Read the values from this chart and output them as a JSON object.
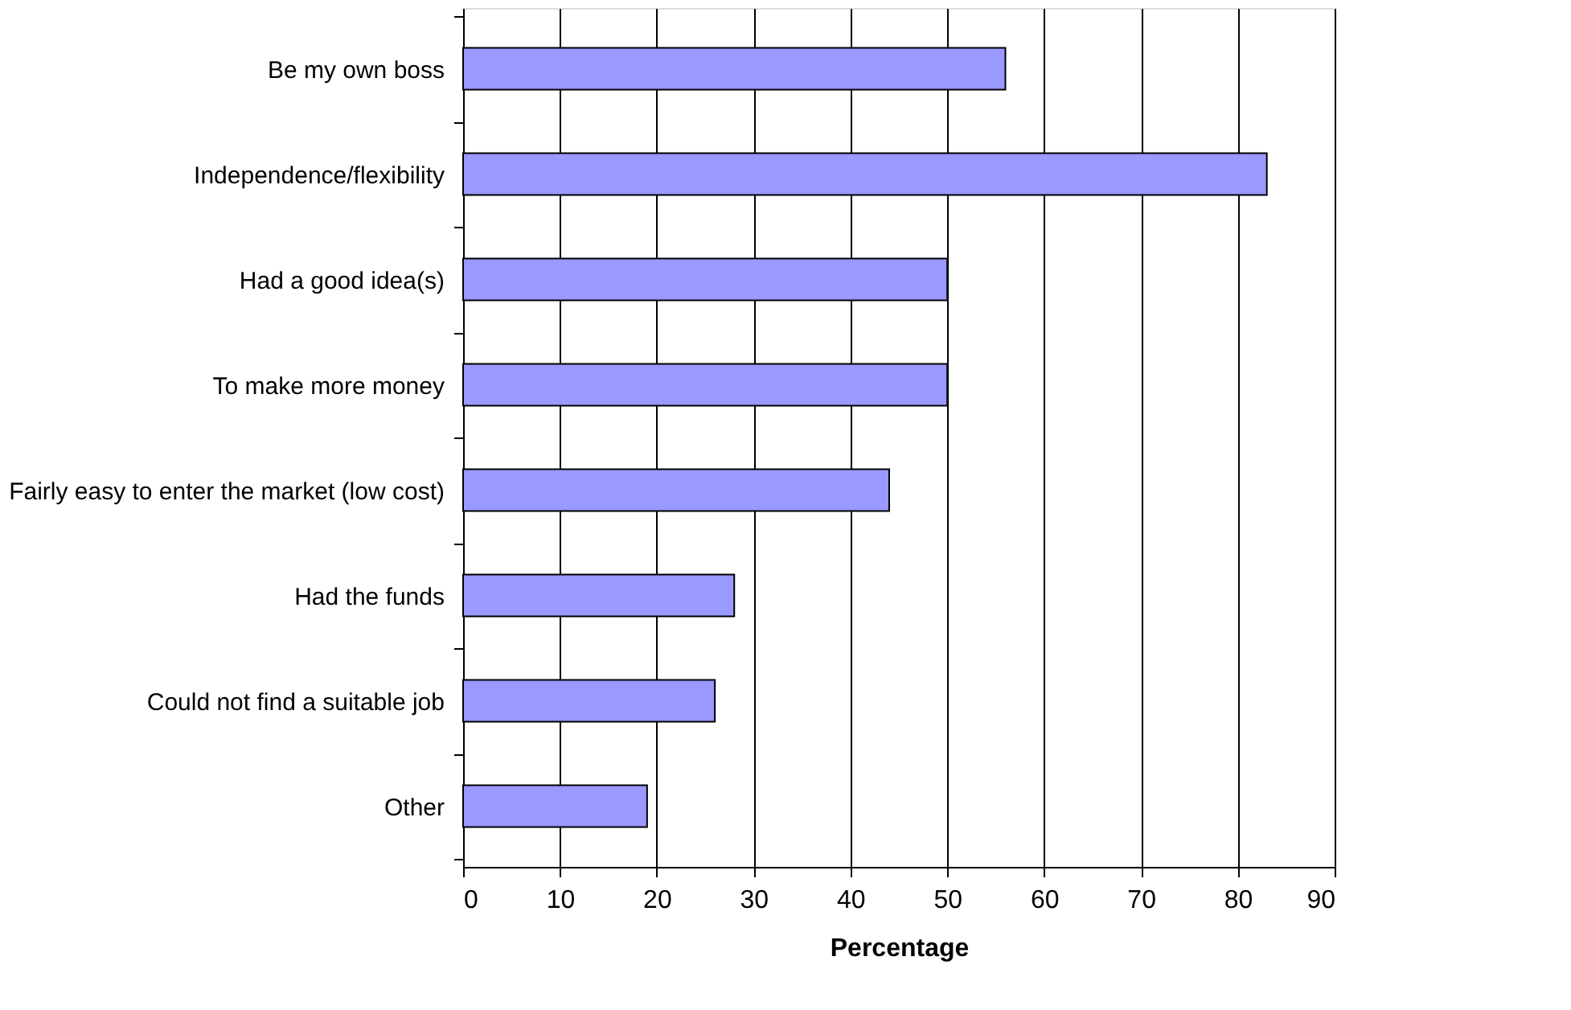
{
  "chart_data": {
    "type": "bar",
    "orientation": "horizontal",
    "xlabel": "Percentage",
    "categories": [
      "Be my own boss",
      "Independence/flexibility",
      "Had a good idea(s)",
      "To make more money",
      "Fairly easy to enter the market (low cost)",
      "Had the funds",
      "Could not find a suitable job",
      "Other"
    ],
    "values": [
      56,
      83,
      50,
      50,
      44,
      28,
      26,
      19
    ],
    "color": "#9999ff",
    "xlim": [
      0,
      90
    ],
    "xticks": [
      0,
      10,
      20,
      30,
      40,
      50,
      60,
      70,
      80,
      90
    ],
    "grid": "x"
  }
}
